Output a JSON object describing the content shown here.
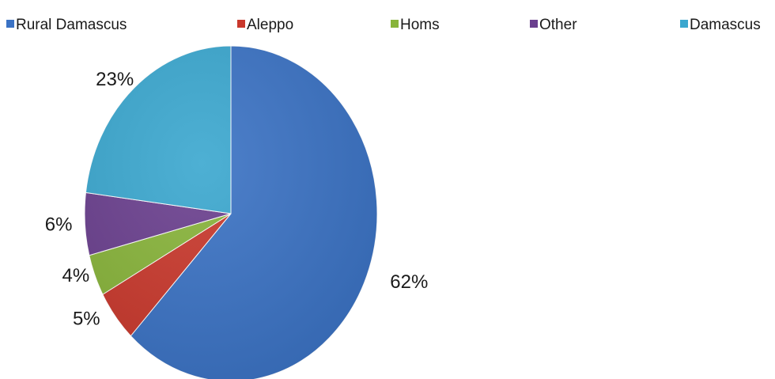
{
  "chart_data": {
    "type": "pie",
    "categories": [
      "Rural Damascus",
      "Aleppo",
      "Homs",
      "Other",
      "Damascus"
    ],
    "values": [
      62,
      5,
      4,
      6,
      23
    ],
    "data_labels": [
      "62%",
      "5%",
      "4%",
      "6%",
      "23%"
    ],
    "colors": [
      "#3a72c4",
      "#c9382c",
      "#88b43a",
      "#6a3f8e",
      "#3aa7cf"
    ],
    "legend": {
      "placement": "top",
      "entries": [
        "Rural Damascus",
        "Aleppo",
        "Homs",
        "Other",
        "Damascus"
      ]
    },
    "start_angle_deg": 0,
    "direction": "clockwise"
  }
}
